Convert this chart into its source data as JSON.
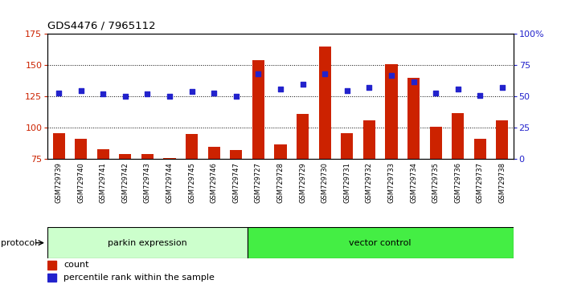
{
  "title": "GDS4476 / 7965112",
  "samples": [
    "GSM729739",
    "GSM729740",
    "GSM729741",
    "GSM729742",
    "GSM729743",
    "GSM729744",
    "GSM729745",
    "GSM729746",
    "GSM729747",
    "GSM729727",
    "GSM729728",
    "GSM729729",
    "GSM729730",
    "GSM729731",
    "GSM729732",
    "GSM729733",
    "GSM729734",
    "GSM729735",
    "GSM729736",
    "GSM729737",
    "GSM729738"
  ],
  "count_values": [
    96,
    91,
    83,
    79,
    79,
    76,
    95,
    85,
    82,
    154,
    87,
    111,
    165,
    96,
    106,
    151,
    140,
    101,
    112,
    91,
    106
  ],
  "percentile_values": [
    53,
    55,
    52,
    50,
    52,
    50,
    54,
    53,
    50,
    68,
    56,
    60,
    68,
    55,
    57,
    67,
    62,
    53,
    56,
    51,
    57
  ],
  "group1_count": 9,
  "group2_count": 12,
  "group1_label": "parkin expression",
  "group2_label": "vector control",
  "protocol_label": "protocol",
  "ylim_left": [
    75,
    175
  ],
  "ylim_right": [
    0,
    100
  ],
  "yticks_left": [
    75,
    100,
    125,
    150,
    175
  ],
  "yticks_right": [
    0,
    25,
    50,
    75,
    100
  ],
  "ytick_labels_right": [
    "0",
    "25",
    "50",
    "75",
    "100%"
  ],
  "bar_color": "#cc2200",
  "dot_color": "#2222cc",
  "group1_bg": "#ccffcc",
  "group2_bg": "#44ee44",
  "sample_bg": "#cccccc",
  "legend_count_label": "count",
  "legend_pct_label": "percentile rank within the sample",
  "hgrid_vals": [
    100,
    125,
    150
  ]
}
